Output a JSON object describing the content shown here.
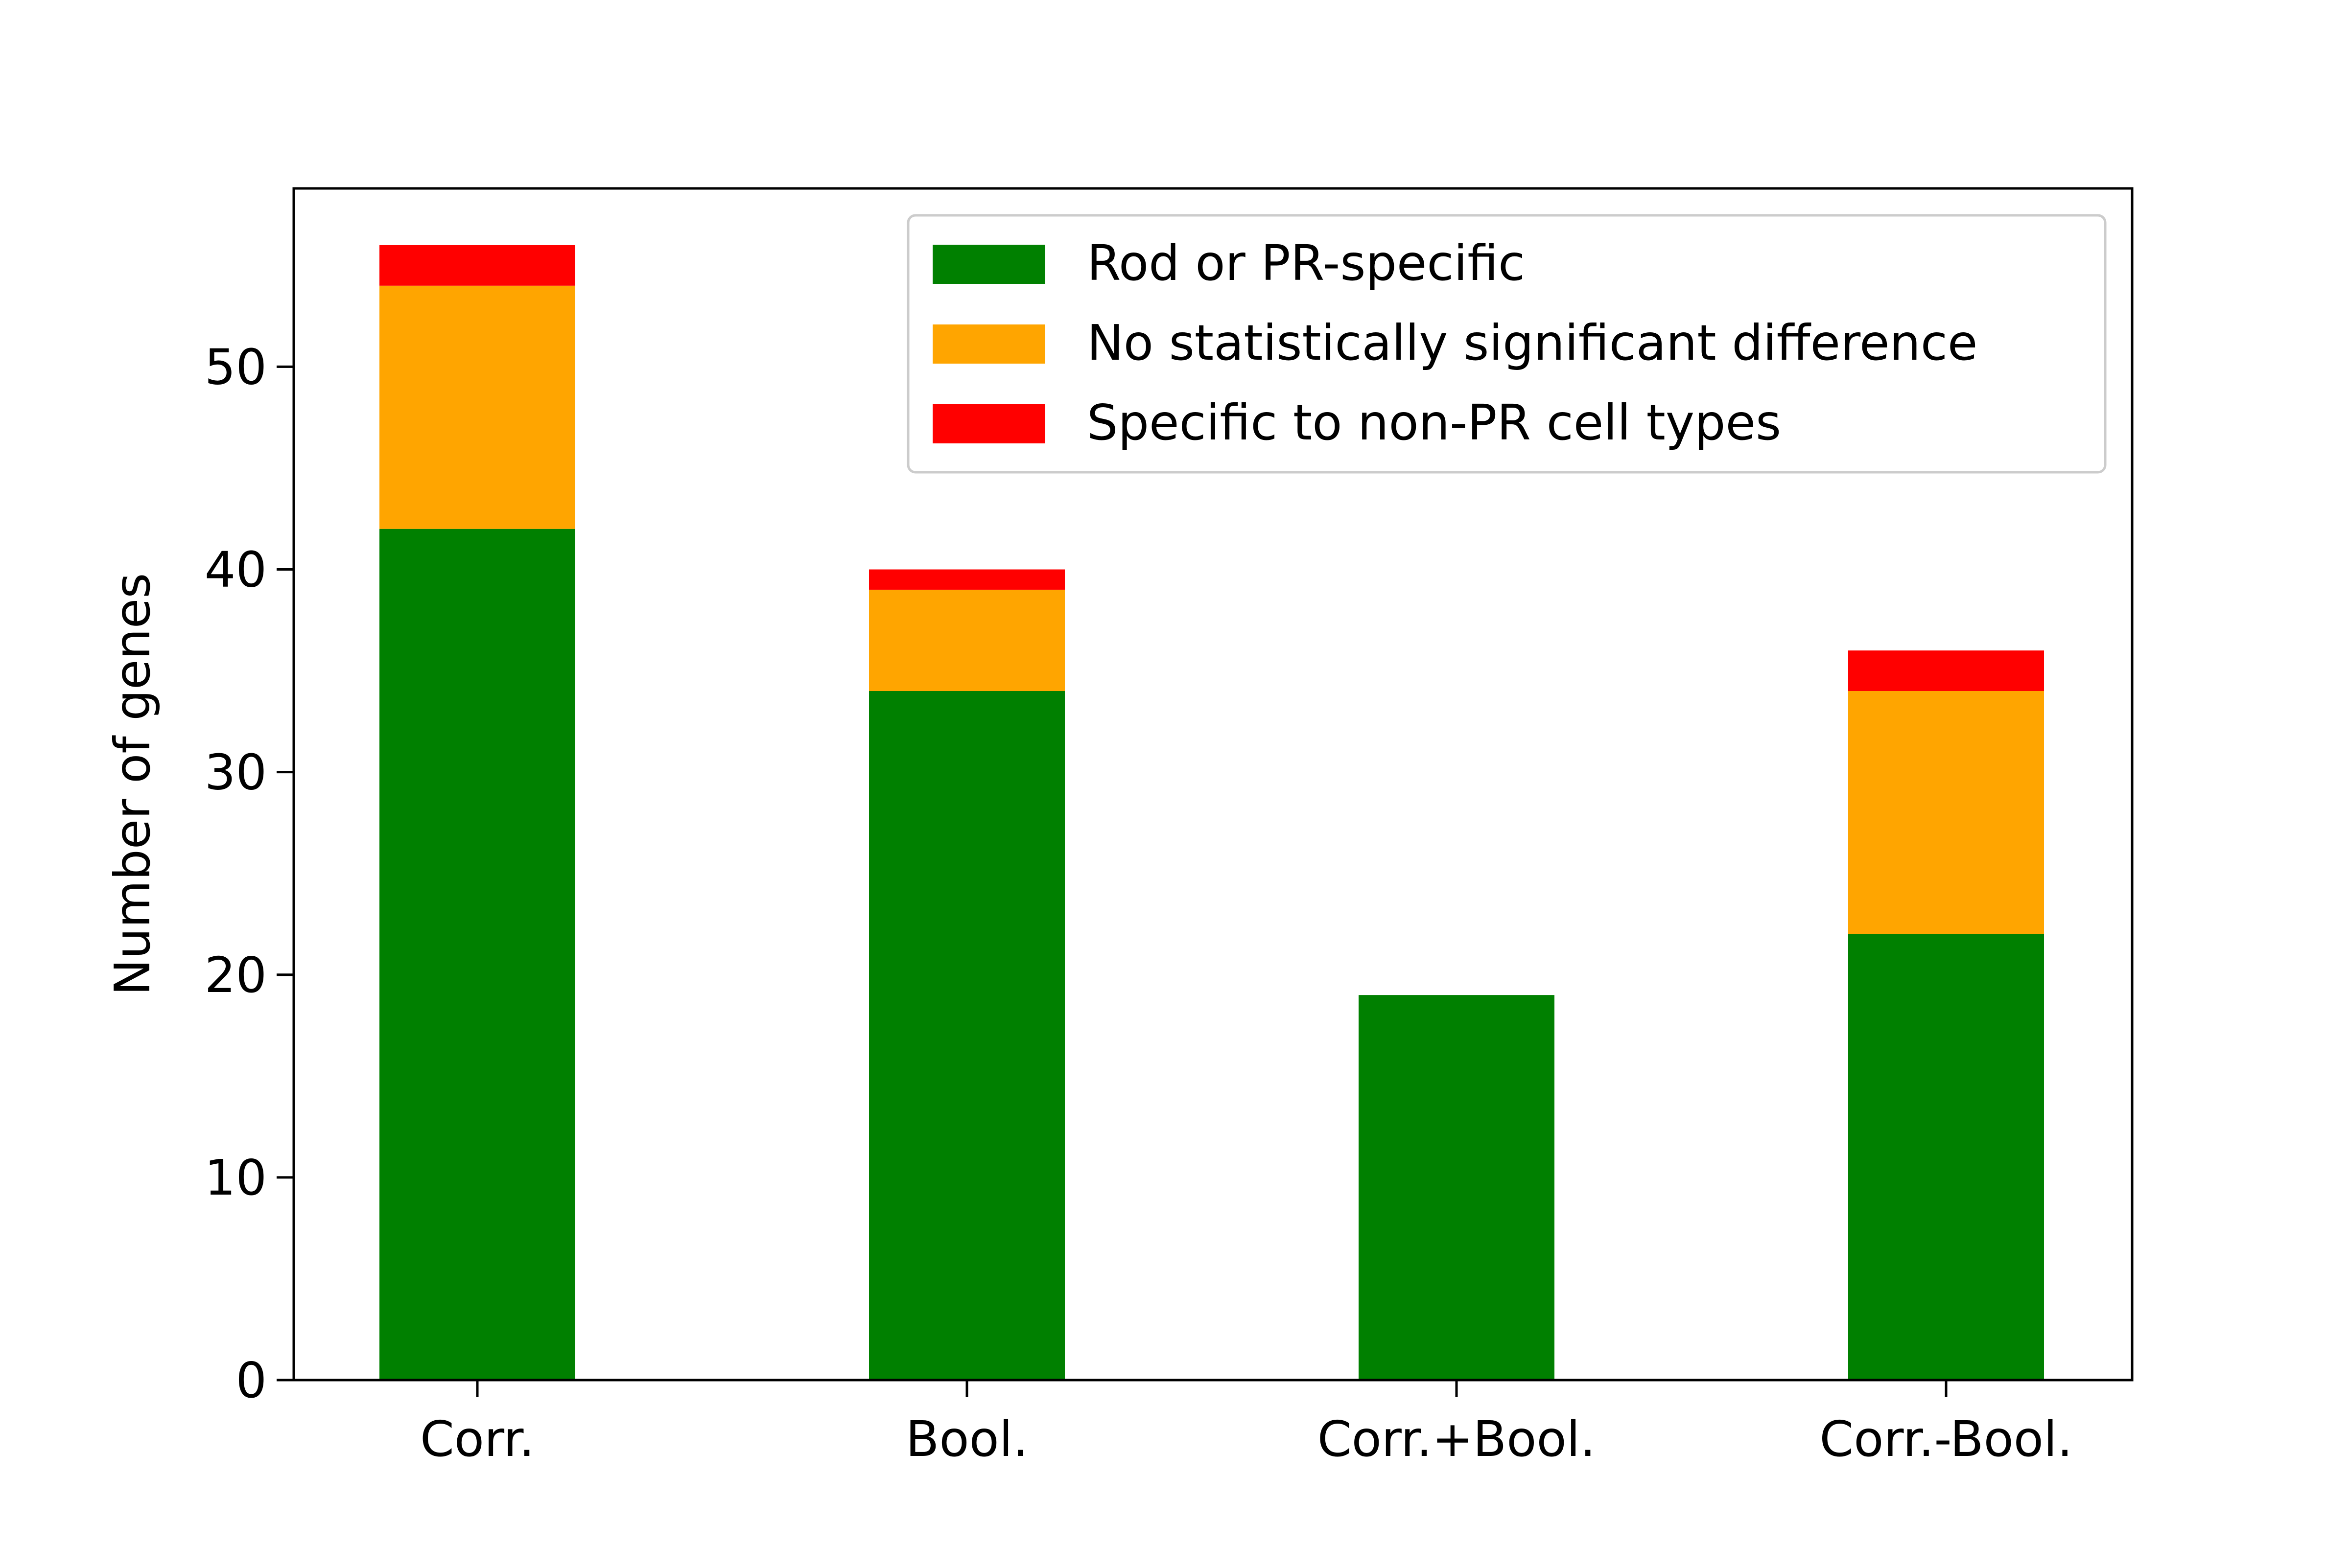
{
  "chart_data": {
    "type": "bar",
    "stacked": true,
    "categories": [
      "Corr.",
      "Bool.",
      "Corr.+Bool.",
      "Corr.-Bool."
    ],
    "series": [
      {
        "name": "Rod or PR-specific",
        "color": "#008000",
        "values": [
          42,
          34,
          19,
          22
        ]
      },
      {
        "name": "No statistically significant difference",
        "color": "#FFA500",
        "values": [
          12,
          5,
          0,
          12
        ]
      },
      {
        "name": "Specific to non-PR cell types",
        "color": "#FF0000",
        "values": [
          2,
          1,
          0,
          2
        ]
      }
    ],
    "title": "",
    "xlabel": "",
    "ylabel": "Number of genes",
    "ylim": [
      0,
      58.8
    ],
    "yticks": [
      0,
      10,
      20,
      30,
      40,
      50
    ],
    "grid": false,
    "legend_position": "top-right"
  }
}
